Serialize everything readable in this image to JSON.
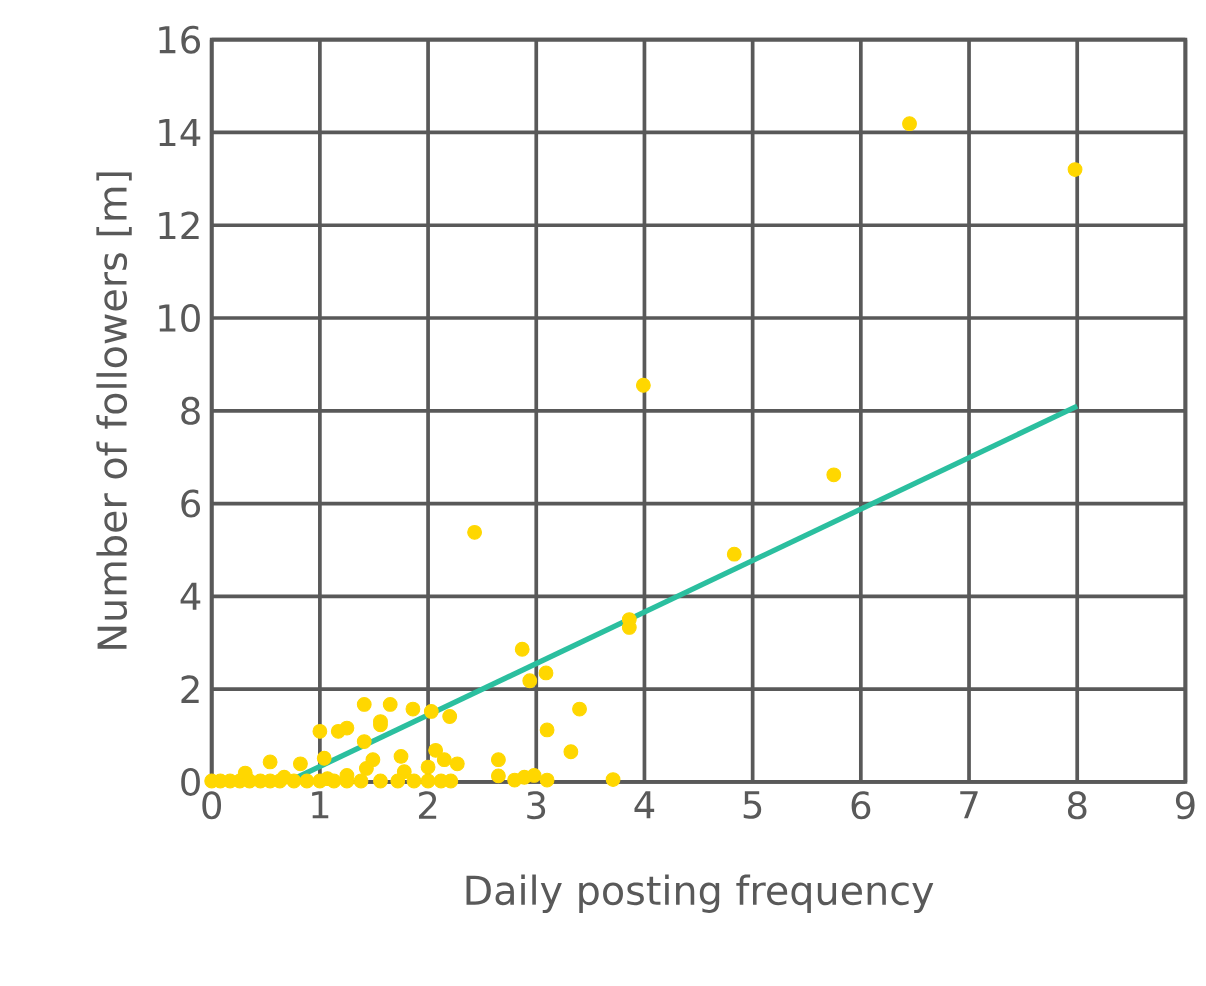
{
  "chart_data": {
    "type": "scatter",
    "xlabel": "Daily posting frequency",
    "ylabel": "Number of followers [m]",
    "xlim": [
      0,
      9
    ],
    "ylim": [
      0,
      16
    ],
    "xticks": [
      0,
      1,
      2,
      3,
      4,
      5,
      6,
      7,
      8,
      9
    ],
    "yticks": [
      0,
      2,
      4,
      6,
      8,
      10,
      12,
      14,
      16
    ],
    "grid": true,
    "series": [
      {
        "marker": "circle",
        "color": "#ffd700",
        "x": [
          1.41,
          1.65,
          1.86,
          2.03,
          2.2,
          1.56,
          1.56,
          1.25,
          1.17,
          1.0,
          1.41,
          2.87,
          2.94,
          3.09,
          3.4,
          3.1,
          3.32,
          2.65,
          2.65,
          3.71,
          1.04,
          0.54,
          0.82,
          1.49,
          1.75,
          2.07,
          2.15,
          2.27,
          2.0,
          1.78,
          1.43,
          1.25,
          1.07,
          2.8,
          2.89,
          2.98,
          3.1,
          0.0,
          0.08,
          0.17,
          0.26,
          0.35,
          0.45,
          0.54,
          0.63,
          0.76,
          0.88,
          1.0,
          1.13,
          1.25,
          1.38,
          1.56,
          1.72,
          1.87,
          2.0,
          2.12,
          2.21,
          0.31,
          0.67,
          2.43,
          3.99,
          6.45,
          7.98,
          5.75,
          4.83,
          3.86,
          3.86
        ],
        "values": [
          1.67,
          1.67,
          1.57,
          1.52,
          1.41,
          1.23,
          1.3,
          1.16,
          1.09,
          1.09,
          0.87,
          2.86,
          2.18,
          2.35,
          1.57,
          1.12,
          0.65,
          0.48,
          0.13,
          0.05,
          0.51,
          0.43,
          0.39,
          0.48,
          0.55,
          0.68,
          0.48,
          0.39,
          0.32,
          0.22,
          0.29,
          0.14,
          0.07,
          0.04,
          0.1,
          0.14,
          0.04,
          0.02,
          0.02,
          0.02,
          0.02,
          0.02,
          0.02,
          0.02,
          0.02,
          0.02,
          0.02,
          0.02,
          0.02,
          0.02,
          0.02,
          0.02,
          0.02,
          0.02,
          0.02,
          0.02,
          0.02,
          0.19,
          0.1,
          5.38,
          8.55,
          14.19,
          13.2,
          6.62,
          4.91,
          3.33,
          3.5
        ]
      },
      {
        "type": "line",
        "marker": "none",
        "color": "#2bbf9f",
        "x": [
          0.7,
          8.0
        ],
        "values": [
          0.0,
          8.1
        ]
      }
    ]
  }
}
